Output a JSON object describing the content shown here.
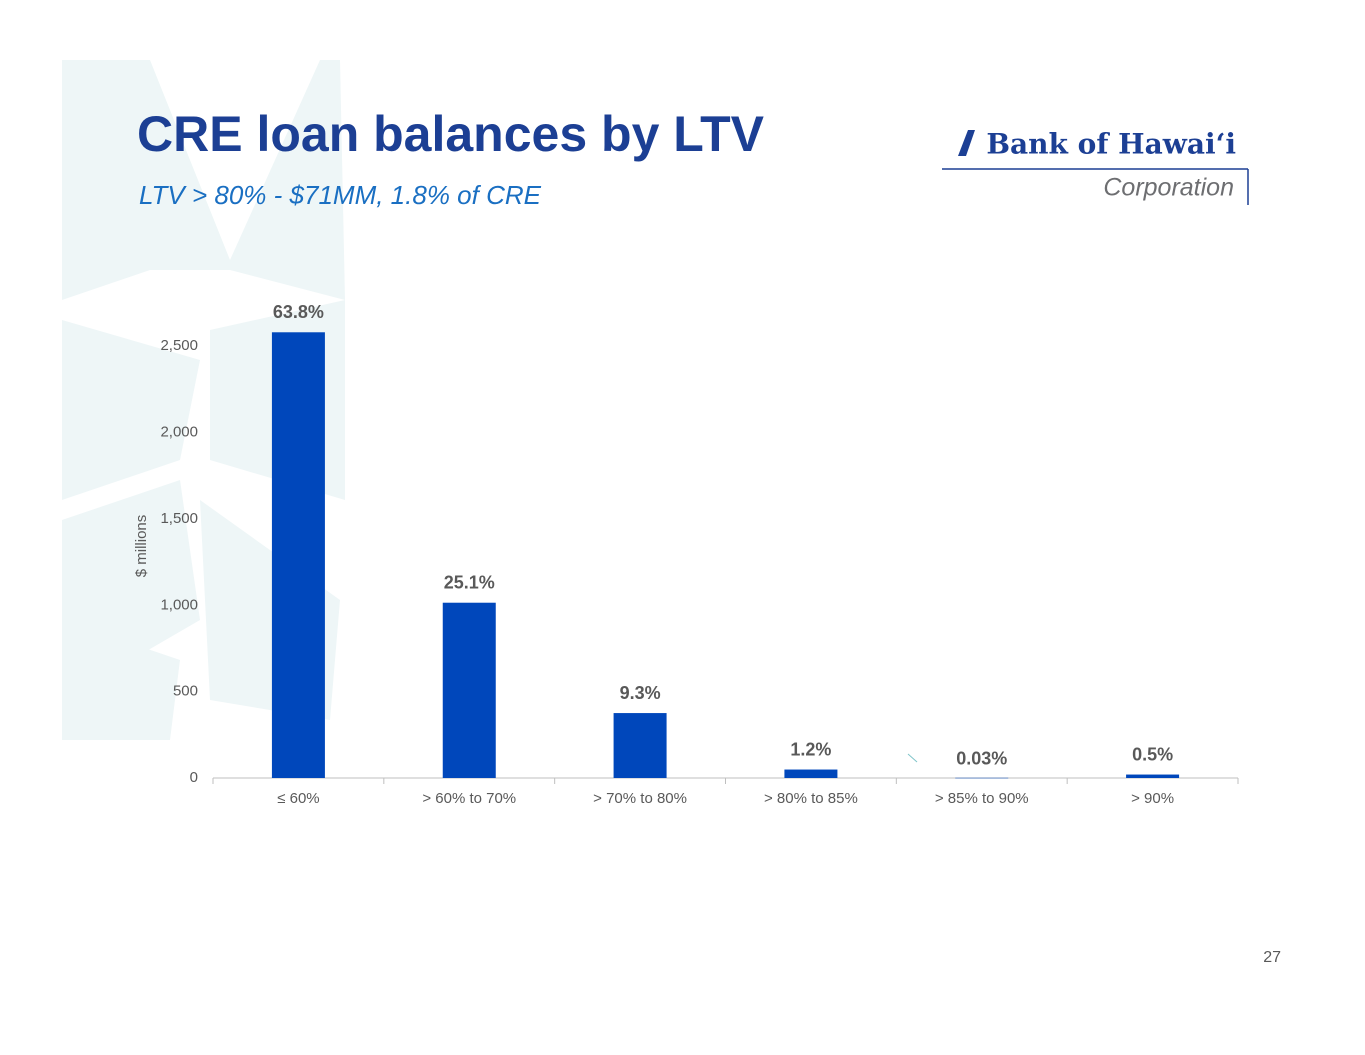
{
  "chart_data": {
    "type": "bar",
    "title": "CRE loan balances by LTV",
    "subtitle": "LTV > 80% - $71MM, 1.8% of CRE",
    "y_label": "$ millions",
    "categories": [
      "≤ 60%",
      "> 60% to 70%",
      "> 70% to 80%",
      "> 80% to 85%",
      "> 85% to 90%",
      "> 90%"
    ],
    "values": [
      2581,
      1015,
      376,
      49,
      1.2,
      20
    ],
    "data_labels": [
      "63.8%",
      "25.1%",
      "9.3%",
      "1.2%",
      "0.03%",
      "0.5%"
    ],
    "color": "#0047bb",
    "ylim": [
      0,
      2600
    ],
    "yticks": [
      0,
      500,
      {
        "value": 1000,
        "label": "1,000"
      },
      {
        "value": 1500,
        "label": "1,500"
      },
      {
        "value": 2000,
        "label": "2,000"
      },
      {
        "value": 2500,
        "label": "2,500"
      }
    ],
    "grid": false
  },
  "logo": {
    "name": "Bank of Hawaiʻi",
    "subtitle": "Corporation"
  },
  "page_number": "27"
}
